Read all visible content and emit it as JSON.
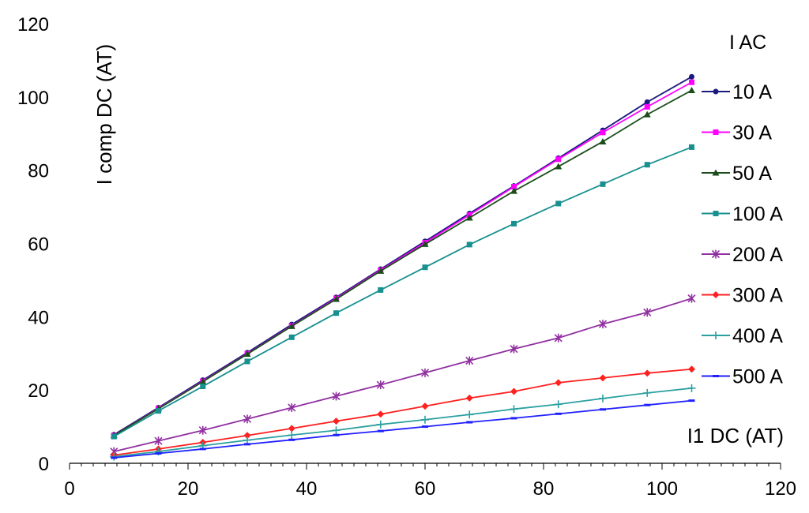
{
  "chart_data": {
    "type": "line",
    "xlabel": "I1 DC  (AT)",
    "ylabel": "I comp DC (AT)",
    "xlim": [
      0,
      120
    ],
    "ylim": [
      0,
      120
    ],
    "xticks": [
      0,
      20,
      40,
      60,
      80,
      100,
      120
    ],
    "yticks": [
      0,
      20,
      40,
      60,
      80,
      100,
      120
    ],
    "grid": false,
    "legend_title": "I AC",
    "legend_position": "right",
    "x": [
      7.5,
      15,
      22.5,
      30,
      37.5,
      45,
      52.5,
      60,
      67.5,
      75,
      82.5,
      90,
      97.5,
      105
    ],
    "series": [
      {
        "name": "10 A",
        "color": "#1a1a7e",
        "marker": "circle",
        "values": [
          7.8,
          15.2,
          22.7,
          30.2,
          37.9,
          45.3,
          53.0,
          60.6,
          68.2,
          75.7,
          83.3,
          90.9,
          98.6,
          105.5
        ]
      },
      {
        "name": "30 A",
        "color": "#ff00ff",
        "marker": "square",
        "values": [
          7.6,
          15.0,
          22.4,
          29.9,
          37.5,
          45.0,
          52.7,
          60.2,
          67.8,
          75.5,
          83.0,
          90.3,
          97.3,
          104.0
        ]
      },
      {
        "name": "50 A",
        "color": "#1b4d1b",
        "marker": "triangle",
        "values": [
          7.6,
          14.9,
          22.3,
          29.8,
          37.4,
          44.8,
          52.5,
          59.8,
          67.0,
          74.3,
          81.0,
          87.8,
          95.2,
          101.8
        ]
      },
      {
        "name": "100 A",
        "color": "#17908f",
        "marker": "square",
        "values": [
          7.3,
          14.3,
          21.0,
          27.8,
          34.4,
          41.0,
          47.3,
          53.5,
          59.7,
          65.4,
          70.9,
          76.2,
          81.5,
          86.3
        ]
      },
      {
        "name": "200 A",
        "color": "#9030a0",
        "marker": "star",
        "values": [
          3.2,
          6.1,
          9.0,
          12.1,
          15.2,
          18.3,
          21.4,
          24.7,
          28.0,
          31.2,
          34.2,
          38.0,
          41.2,
          45.0
        ]
      },
      {
        "name": "300 A",
        "color": "#ff2020",
        "marker": "diamond",
        "values": [
          2.2,
          3.9,
          5.7,
          7.6,
          9.5,
          11.5,
          13.4,
          15.6,
          17.8,
          19.6,
          22.0,
          23.3,
          24.6,
          25.7
        ]
      },
      {
        "name": "400 A",
        "color": "#2aa0a0",
        "marker": "plus",
        "values": [
          1.8,
          3.2,
          4.8,
          6.3,
          7.7,
          9.0,
          10.6,
          11.9,
          13.3,
          14.8,
          16.1,
          17.7,
          19.2,
          20.5
        ]
      },
      {
        "name": "500 A",
        "color": "#2020ff",
        "marker": "dash",
        "values": [
          1.5,
          2.7,
          3.9,
          5.2,
          6.4,
          7.7,
          8.8,
          10.0,
          11.2,
          12.3,
          13.5,
          14.7,
          15.9,
          17.1
        ]
      }
    ]
  }
}
